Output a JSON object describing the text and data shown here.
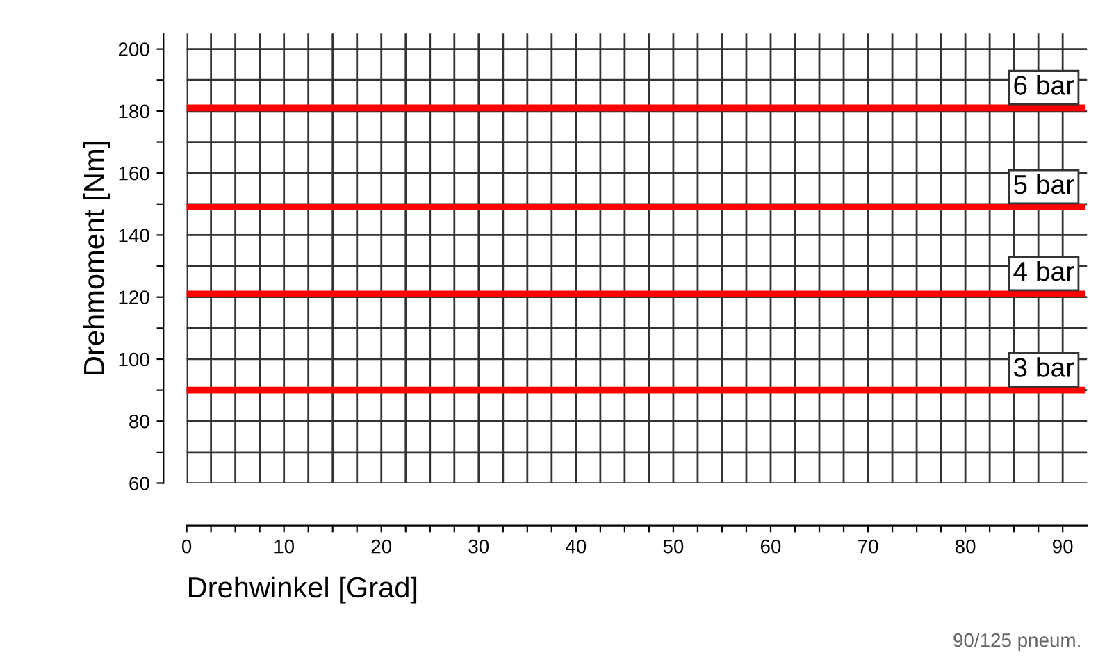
{
  "chart_data": {
    "type": "line",
    "xlabel": "Drehwinkel [Grad]",
    "ylabel": "Drehmoment [Nm]",
    "x": [
      0,
      92
    ],
    "series": [
      {
        "name": "3 bar",
        "color": "#ff0000",
        "values": [
          90,
          90
        ]
      },
      {
        "name": "4 bar",
        "color": "#ff0000",
        "values": [
          121,
          121
        ]
      },
      {
        "name": "5 bar",
        "color": "#ff0000",
        "values": [
          149,
          149
        ]
      },
      {
        "name": "6 bar",
        "color": "#ff0000",
        "values": [
          181,
          181
        ]
      }
    ],
    "xlim": [
      0,
      92.5
    ],
    "ylim": [
      60,
      205
    ],
    "xticks": [
      0,
      {
        "value": 2.5,
        "label": null
      },
      {
        "value": 5,
        "label": null
      },
      {
        "value": 7.5,
        "label": null
      },
      10,
      {
        "value": 12.5,
        "label": null
      },
      {
        "value": 15,
        "label": null
      },
      {
        "value": 17.5,
        "label": null
      },
      20,
      {
        "value": 22.5,
        "label": null
      },
      {
        "value": 25,
        "label": null
      },
      {
        "value": 27.5,
        "label": null
      },
      30,
      {
        "value": 32.5,
        "label": null
      },
      {
        "value": 35,
        "label": null
      },
      {
        "value": 37.5,
        "label": null
      },
      40,
      {
        "value": 42.5,
        "label": null
      },
      {
        "value": 45,
        "label": null
      },
      {
        "value": 47.5,
        "label": null
      },
      50,
      {
        "value": 52.5,
        "label": null
      },
      {
        "value": 55,
        "label": null
      },
      {
        "value": 57.5,
        "label": null
      },
      60,
      {
        "value": 62.5,
        "label": null
      },
      {
        "value": 65,
        "label": null
      },
      {
        "value": 67.5,
        "label": null
      },
      70,
      {
        "value": 72.5,
        "label": null
      },
      {
        "value": 75,
        "label": null
      },
      {
        "value": 77.5,
        "label": null
      },
      80,
      {
        "value": 82.5,
        "label": null
      },
      {
        "value": 85,
        "label": null
      },
      {
        "value": 87.5,
        "label": null
      },
      90
    ],
    "yticks": [
      60,
      {
        "value": 70,
        "label": null
      },
      80,
      {
        "value": 90,
        "label": null
      },
      100,
      {
        "value": 110,
        "label": null
      },
      120,
      {
        "value": 130,
        "label": null
      },
      140,
      {
        "value": 150,
        "label": null
      },
      160,
      {
        "value": 170,
        "label": null
      },
      180,
      {
        "value": 190,
        "label": null
      },
      200
    ],
    "grid": true,
    "legend": false,
    "marker": "none",
    "line_style": "solid",
    "annotations": [
      "90/125 pneum."
    ]
  }
}
